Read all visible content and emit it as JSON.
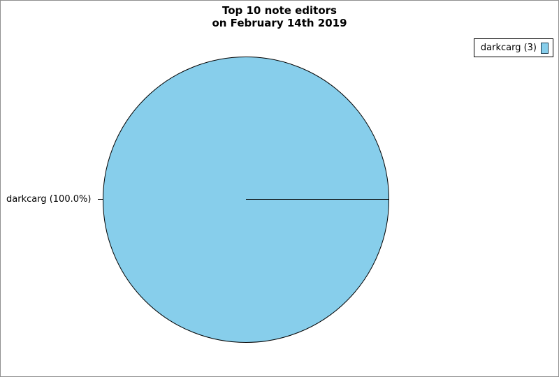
{
  "chart_data": {
    "type": "pie",
    "title": "Top 10 note editors\non February 14th 2019",
    "title_lines": [
      "Top 10 note editors",
      "on February 14th 2019"
    ],
    "slices": [
      {
        "label": "darkcarg",
        "value": 3,
        "percent": 100.0,
        "color": "#87CEEB",
        "display_label": "darkcarg (100.0%)"
      }
    ],
    "total": 3,
    "start_angle_deg": 0,
    "legend": {
      "position": "top-right",
      "entries": [
        {
          "label": "darkcarg (3)",
          "color": "#87CEEB"
        }
      ]
    }
  }
}
